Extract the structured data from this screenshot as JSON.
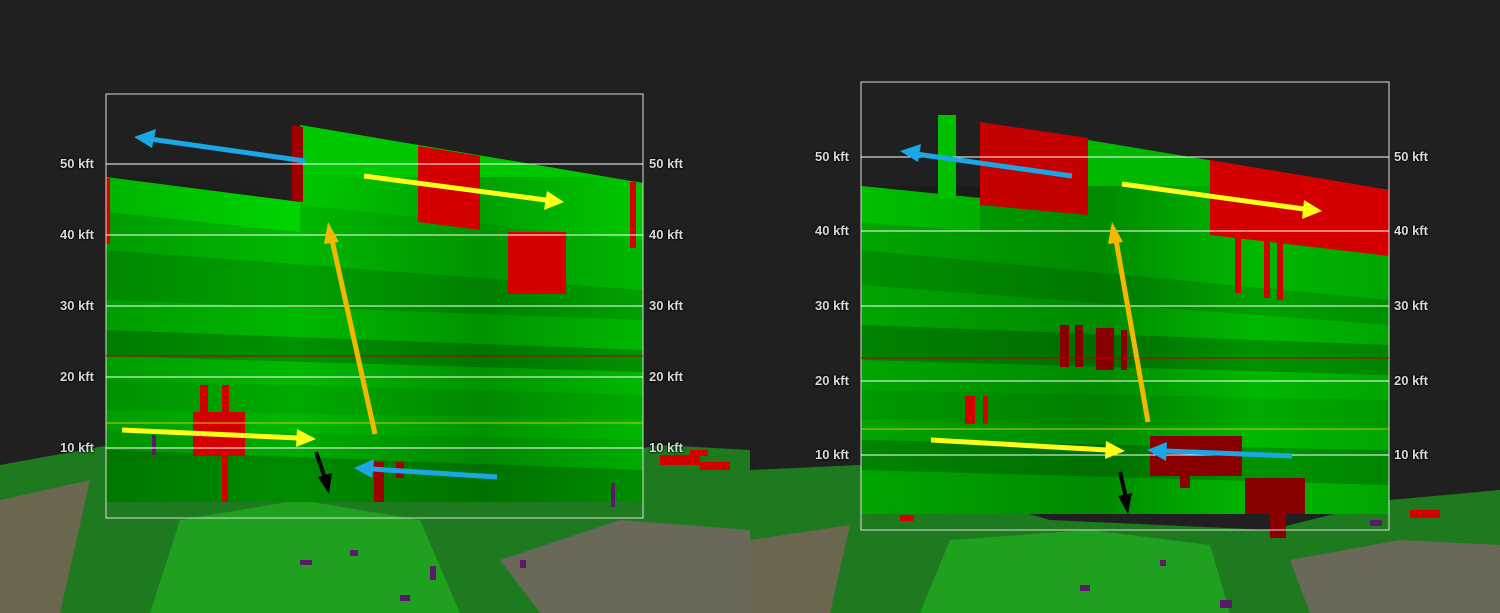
{
  "panels": [
    {
      "id": "left",
      "altitude_labels": [
        "50 kft",
        "40 kft",
        "30 kft",
        "20 kft",
        "10 kft"
      ]
    },
    {
      "id": "right",
      "altitude_labels": [
        "50 kft",
        "40 kft",
        "30 kft",
        "20 kft",
        "10 kft"
      ]
    }
  ],
  "colors": {
    "background": "#202020",
    "outbound_velocity": "#00cc00",
    "inbound_velocity": "#d40000",
    "inflow_arrow": "#ffff1a",
    "updraft_arrow": "#f5b800",
    "outflow_arrow": "#1aa7e6",
    "downdraft_arrow": "#000000",
    "grid_line": "#ffffff",
    "freezing_level_line": "#c8c800",
    "minus20c_level_line": "#b00000"
  }
}
